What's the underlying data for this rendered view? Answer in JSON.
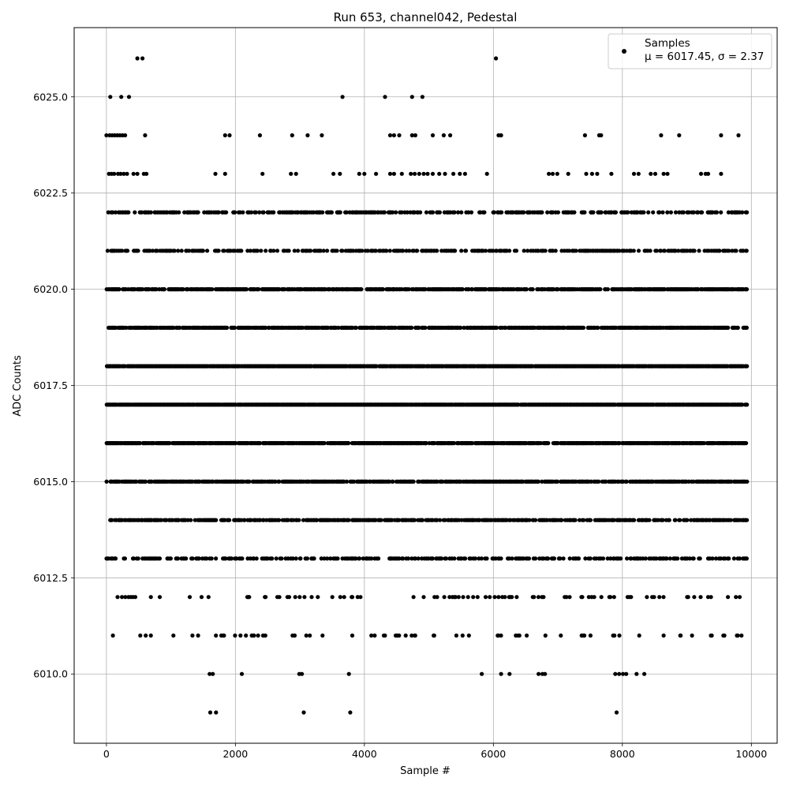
{
  "chart_data": {
    "type": "scatter",
    "title": "Run 653, channel042, Pedestal",
    "xlabel": "Sample #",
    "ylabel": "ADC Counts",
    "xlim": [
      -500,
      10400
    ],
    "ylim": [
      6008.2,
      6026.8
    ],
    "x_ticks": [
      0,
      2000,
      4000,
      6000,
      8000,
      10000
    ],
    "y_ticks": [
      6010.0,
      6012.5,
      6015.0,
      6017.5,
      6020.0,
      6022.5,
      6025.0
    ],
    "x_tick_labels": [
      "0",
      "2000",
      "4000",
      "6000",
      "8000",
      "10000"
    ],
    "y_tick_labels": [
      "6010.0",
      "6012.5",
      "6015.0",
      "6017.5",
      "6020.0",
      "6022.5",
      "6025.0"
    ],
    "grid": true,
    "marker_color": "#000000",
    "legend": {
      "placement": "top-right",
      "entries": [
        {
          "label": "Samples",
          "sublabel": "μ = 6017.45, σ = 2.37"
        }
      ]
    },
    "series": [
      {
        "name": "Samples",
        "points": [
          [
            480,
            6026
          ],
          [
            560,
            6026
          ],
          [
            6040,
            6026
          ],
          [
            60,
            6025
          ],
          [
            230,
            6025
          ],
          [
            350,
            6025
          ],
          [
            3660,
            6025
          ],
          [
            4320,
            6025
          ],
          [
            4740,
            6025
          ],
          [
            4900,
            6025
          ],
          [
            0,
            6024
          ],
          [
            50,
            6024
          ],
          [
            90,
            6024
          ],
          [
            130,
            6024
          ],
          [
            170,
            6024
          ],
          [
            210,
            6024
          ],
          [
            250,
            6024
          ],
          [
            290,
            6024
          ],
          [
            600,
            6024
          ],
          [
            1840,
            6024
          ],
          [
            1910,
            6024
          ],
          [
            2380,
            6024
          ],
          [
            2880,
            6024
          ],
          [
            3120,
            6024
          ],
          [
            3340,
            6024
          ],
          [
            4400,
            6024
          ],
          [
            4460,
            6024
          ],
          [
            4540,
            6024
          ],
          [
            4740,
            6024
          ],
          [
            4790,
            6024
          ],
          [
            5060,
            6024
          ],
          [
            5230,
            6024
          ],
          [
            5330,
            6024
          ],
          [
            6080,
            6024
          ],
          [
            6120,
            6024
          ],
          [
            7420,
            6024
          ],
          [
            7640,
            6024
          ],
          [
            7670,
            6024
          ],
          [
            8600,
            6024
          ],
          [
            8880,
            6024
          ],
          [
            9530,
            6024
          ],
          [
            9800,
            6024
          ],
          [
            40,
            6023
          ],
          [
            80,
            6023
          ],
          [
            120,
            6023
          ],
          [
            180,
            6023
          ],
          [
            220,
            6023
          ],
          [
            270,
            6023
          ],
          [
            320,
            6023
          ],
          [
            420,
            6023
          ],
          [
            480,
            6023
          ],
          [
            580,
            6023
          ],
          [
            620,
            6023
          ],
          [
            1690,
            6023
          ],
          [
            1840,
            6023
          ],
          [
            2420,
            6023
          ],
          [
            2860,
            6023
          ],
          [
            2940,
            6023
          ],
          [
            3520,
            6023
          ],
          [
            3620,
            6023
          ],
          [
            3920,
            6023
          ],
          [
            4000,
            6023
          ],
          [
            4180,
            6023
          ],
          [
            4400,
            6023
          ],
          [
            4460,
            6023
          ],
          [
            4580,
            6023
          ],
          [
            4720,
            6023
          ],
          [
            4780,
            6023
          ],
          [
            4850,
            6023
          ],
          [
            4920,
            6023
          ],
          [
            4980,
            6023
          ],
          [
            5060,
            6023
          ],
          [
            5160,
            6023
          ],
          [
            5250,
            6023
          ],
          [
            5380,
            6023
          ],
          [
            5480,
            6023
          ],
          [
            5560,
            6023
          ],
          [
            5900,
            6023
          ],
          [
            6860,
            6023
          ],
          [
            6920,
            6023
          ],
          [
            6990,
            6023
          ],
          [
            7160,
            6023
          ],
          [
            7440,
            6023
          ],
          [
            7530,
            6023
          ],
          [
            7610,
            6023
          ],
          [
            7830,
            6023
          ],
          [
            8180,
            6023
          ],
          [
            8250,
            6023
          ],
          [
            8440,
            6023
          ],
          [
            8510,
            6023
          ],
          [
            8640,
            6023
          ],
          [
            8700,
            6023
          ],
          [
            9220,
            6023
          ],
          [
            9290,
            6023
          ],
          [
            9330,
            6023
          ],
          [
            9530,
            6023
          ],
          [
            1600,
            6010
          ],
          [
            1650,
            6010
          ],
          [
            2100,
            6010
          ],
          [
            2990,
            6010
          ],
          [
            3030,
            6010
          ],
          [
            3760,
            6010
          ],
          [
            5820,
            6010
          ],
          [
            6120,
            6010
          ],
          [
            6250,
            6010
          ],
          [
            6700,
            6010
          ],
          [
            6760,
            6010
          ],
          [
            6800,
            6010
          ],
          [
            7890,
            6010
          ],
          [
            7950,
            6010
          ],
          [
            8010,
            6010
          ],
          [
            8060,
            6010
          ],
          [
            8220,
            6010
          ],
          [
            8340,
            6010
          ],
          [
            1610,
            6009
          ],
          [
            1700,
            6009
          ],
          [
            3060,
            6009
          ],
          [
            3780,
            6009
          ],
          [
            7910,
            6009
          ]
        ],
        "dense_bands": [
          {
            "y": 6022,
            "density": 0.42,
            "x_range": [
              0,
              9930
            ]
          },
          {
            "y": 6021,
            "density": 0.42,
            "x_range": [
              0,
              9930
            ]
          },
          {
            "y": 6020,
            "density": 0.75,
            "x_range": [
              0,
              9930
            ]
          },
          {
            "y": 6019,
            "density": 0.72,
            "x_range": [
              0,
              9930
            ]
          },
          {
            "y": 6018,
            "density": 0.95,
            "x_range": [
              0,
              9930
            ]
          },
          {
            "y": 6017,
            "density": 0.95,
            "x_range": [
              0,
              9930
            ]
          },
          {
            "y": 6016,
            "density": 0.85,
            "x_range": [
              0,
              9930
            ]
          },
          {
            "y": 6015,
            "density": 0.7,
            "x_range": [
              0,
              9930
            ]
          },
          {
            "y": 6014,
            "density": 0.6,
            "x_range": [
              0,
              9930
            ]
          },
          {
            "y": 6013,
            "density": 0.38,
            "x_range": [
              0,
              9930
            ]
          },
          {
            "y": 6012,
            "density": 0.14,
            "x_range": [
              0,
              9930
            ]
          },
          {
            "y": 6011,
            "density": 0.08,
            "x_range": [
              0,
              9930
            ]
          }
        ]
      }
    ]
  }
}
